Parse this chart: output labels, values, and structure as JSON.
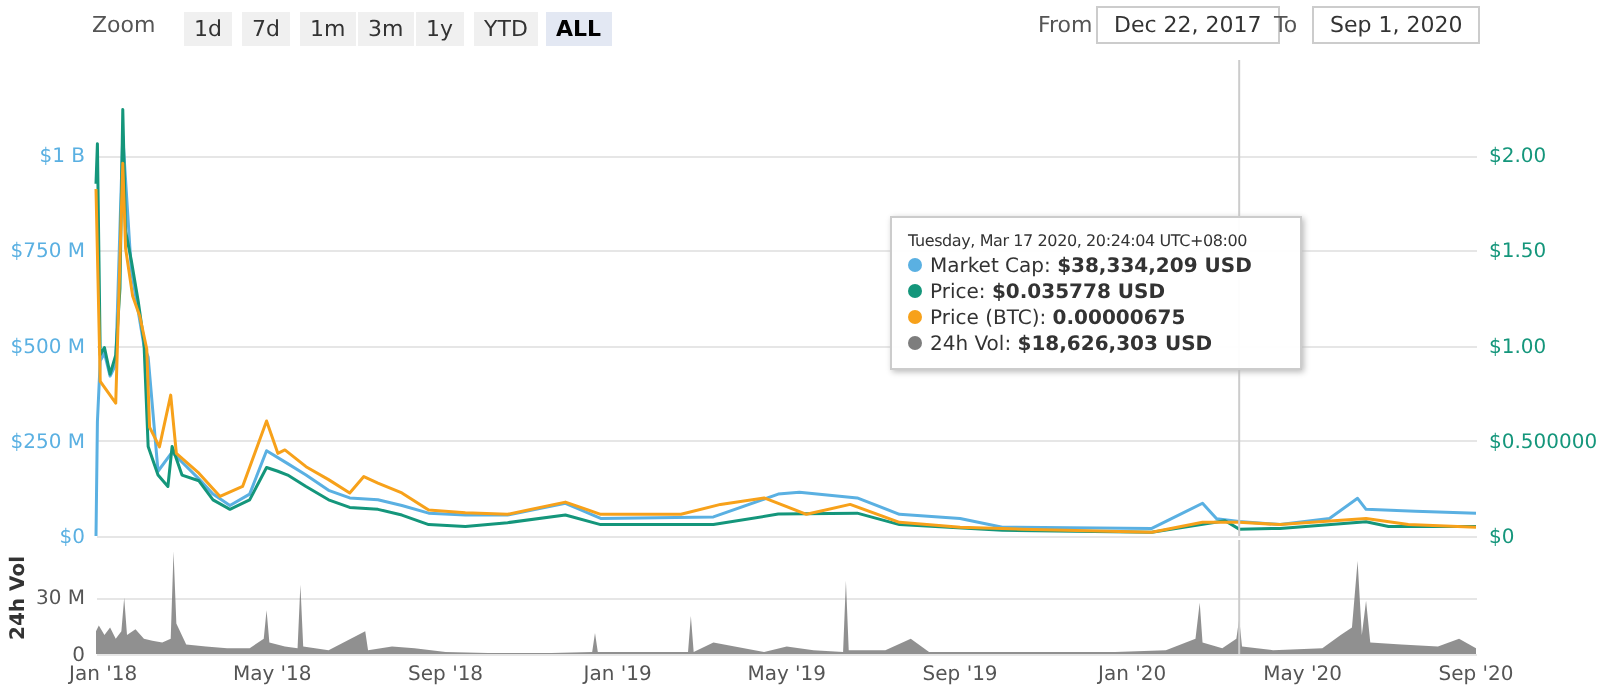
{
  "chart_data": [
    {
      "type": "line",
      "xlim": [
        "2017-12-27",
        "2020-09-01"
      ],
      "ylim": [
        0,
        1250000000.0
      ],
      "yticks": [
        {
          "value": 0,
          "label": "$0"
        },
        {
          "value": 250000000.0,
          "label": "$250 M"
        },
        {
          "value": 500000000.0,
          "label": "$500 M"
        },
        {
          "value": 750000000.0,
          "label": "$750 M"
        },
        {
          "value": 1000000000.0,
          "label": "$1 B"
        }
      ],
      "y2lim": [
        0,
        2.5
      ],
      "y2ticks": [
        {
          "value": 0,
          "label": "$0"
        },
        {
          "value": 0.5,
          "label": "$0.500000"
        },
        {
          "value": 1,
          "label": "$1.00"
        },
        {
          "value": 1.5,
          "label": "$1.50"
        },
        {
          "value": 2,
          "label": "$2.00"
        }
      ],
      "grid": "y",
      "tick_labels": "y",
      "line_style": "solid",
      "marker": "none",
      "series": [
        {
          "color": "#5ab0e2",
          "axis": "y",
          "x": [
            "2017-12-27",
            "2017-12-28",
            "2017-12-30",
            "2018-01-02",
            "2018-01-06",
            "2018-01-10",
            "2018-01-15",
            "2018-01-21",
            "2018-01-30",
            "2018-02-02",
            "2018-02-09",
            "2018-02-19",
            "2018-03-10",
            "2018-03-20",
            "2018-04-01",
            "2018-04-15",
            "2018-04-27",
            "2018-05-12",
            "2018-05-25",
            "2018-06-10",
            "2018-06-25",
            "2018-07-15",
            "2018-08-01",
            "2018-08-20",
            "2018-09-15",
            "2018-10-15",
            "2018-11-25",
            "2018-12-20",
            "2019-03-10",
            "2019-04-25",
            "2019-05-10",
            "2019-06-20",
            "2019-07-20",
            "2019-09-01",
            "2019-10-01",
            "2020-01-15",
            "2020-02-20",
            "2020-03-01",
            "2020-03-17",
            "2020-04-15",
            "2020-05-20",
            "2020-06-09",
            "2020-06-15",
            "2020-07-20",
            "2020-09-01"
          ],
          "values": [
            0,
            300000000.0,
            460000000.0,
            480000000.0,
            420000000.0,
            450000000.0,
            1050000000.0,
            700000000.0,
            500000000.0,
            470000000.0,
            170000000.0,
            220000000.0,
            150000000.0,
            110000000.0,
            80000000.0,
            110000000.0,
            224000000.0,
            190000000.0,
            160000000.0,
            120000000.0,
            100000000.0,
            95000000.0,
            80000000.0,
            60000000.0,
            55000000.0,
            55000000.0,
            86000000.0,
            46000000.0,
            50000000.0,
            110000000.0,
            115000000.0,
            100000000.0,
            57000000.0,
            46000000.0,
            23000000.0,
            20000000.0,
            86000000.0,
            45000000.0,
            38300000.0,
            30000000.0,
            46000000.0,
            99000000.0,
            70000000.0,
            65000000.0,
            60000000.0
          ]
        },
        {
          "color": "#14967b",
          "axis": "y2",
          "x": [
            "2017-12-27",
            "2017-12-28",
            "2017-12-30",
            "2018-01-02",
            "2018-01-06",
            "2018-01-10",
            "2018-01-13",
            "2018-01-15",
            "2018-01-17",
            "2018-01-21",
            "2018-01-26",
            "2018-01-30",
            "2018-02-02",
            "2018-02-09",
            "2018-02-16",
            "2018-02-19",
            "2018-02-26",
            "2018-03-10",
            "2018-03-20",
            "2018-04-01",
            "2018-04-15",
            "2018-04-27",
            "2018-05-05",
            "2018-05-12",
            "2018-05-25",
            "2018-06-10",
            "2018-06-25",
            "2018-07-15",
            "2018-08-01",
            "2018-08-20",
            "2018-09-15",
            "2018-10-15",
            "2018-11-25",
            "2018-12-20",
            "2019-03-10",
            "2019-04-25",
            "2019-06-20",
            "2019-07-20",
            "2019-10-01",
            "2020-01-15",
            "2020-03-07",
            "2020-03-17",
            "2020-04-15",
            "2020-06-15",
            "2020-07-01",
            "2020-09-01"
          ],
          "values": [
            1.85,
            2.06,
            0.95,
            0.99,
            0.85,
            0.95,
            1.3,
            2.24,
            1.6,
            1.45,
            1.23,
            1.02,
            0.47,
            0.32,
            0.26,
            0.47,
            0.32,
            0.29,
            0.19,
            0.14,
            0.19,
            0.36,
            0.34,
            0.32,
            0.26,
            0.19,
            0.15,
            0.14,
            0.11,
            0.06,
            0.05,
            0.07,
            0.11,
            0.06,
            0.06,
            0.115,
            0.12,
            0.06,
            0.03,
            0.02,
            0.08,
            0.036,
            0.04,
            0.075,
            0.05,
            0.05
          ]
        },
        {
          "color": "#f7a11a",
          "axis": "y",
          "x": [
            "2017-12-27",
            "2017-12-30",
            "2018-01-10",
            "2018-01-15",
            "2018-01-17",
            "2018-01-22",
            "2018-01-27",
            "2018-02-01",
            "2018-02-03",
            "2018-02-10",
            "2018-02-18",
            "2018-02-22",
            "2018-03-10",
            "2018-03-25",
            "2018-04-10",
            "2018-04-27",
            "2018-05-05",
            "2018-05-10",
            "2018-05-25",
            "2018-06-10",
            "2018-06-25",
            "2018-07-05",
            "2018-07-15",
            "2018-08-01",
            "2018-08-20",
            "2018-09-15",
            "2018-10-15",
            "2018-11-25",
            "2018-12-20",
            "2019-02-15",
            "2019-03-15",
            "2019-04-15",
            "2019-05-15",
            "2019-06-15",
            "2019-07-20",
            "2019-09-01",
            "2019-10-15",
            "2020-01-15",
            "2020-02-20",
            "2020-03-17",
            "2020-04-15",
            "2020-06-15",
            "2020-07-15",
            "2020-09-01"
          ],
          "values": [
            911000000.0,
            406000000.0,
            349000000.0,
            979000000.0,
            755000000.0,
            630000000.0,
            578000000.0,
            491000000.0,
            286000000.0,
            234000000.0,
            370000000.0,
            217000000.0,
            165000000.0,
            104000000.0,
            130000000.0,
            302000000.0,
            217000000.0,
            226000000.0,
            182000000.0,
            148000000.0,
            113000000.0,
            156000000.0,
            139000000.0,
            113000000.0,
            68000000.0,
            61000000.0,
            57000000.0,
            89000000.0,
            57000000.0,
            57000000.0,
            83000000.0,
            100000000.0,
            57000000.0,
            83000000.0,
            36000000.0,
            23000000.0,
            18000000.0,
            10000000.0,
            36000000.0,
            36000000.0,
            30000000.0,
            46000000.0,
            30000000.0,
            23000000.0
          ]
        }
      ],
      "ref_lines": [
        {
          "axis": "x",
          "value": "2020-03-17",
          "color": "#cccccc"
        }
      ],
      "annotations": [
        "Zoom",
        "1d",
        "7d",
        "1m",
        "3m",
        "1y",
        "YTD",
        "ALL",
        "From",
        "Dec 22, 2017",
        "To",
        "Sep 1, 2020",
        "Tuesday, Mar 17 2020, 20:24:04 UTC+08:00",
        "Market Cap: $38,334,209 USD",
        "Price: $0.035778 USD",
        "Price (BTC): 0.00000675",
        "24h Vol: $18,626,303 USD"
      ]
    },
    {
      "type": "area",
      "ylabel": "24h Vol",
      "xlim": [
        "2017-12-27",
        "2020-09-01"
      ],
      "xticks": [
        {
          "value": "2018-01-01",
          "label": "Jan '18"
        },
        {
          "value": "2018-05-01",
          "label": "May '18"
        },
        {
          "value": "2018-09-01",
          "label": "Sep '18"
        },
        {
          "value": "2019-01-01",
          "label": "Jan '19"
        },
        {
          "value": "2019-05-01",
          "label": "May '19"
        },
        {
          "value": "2019-09-01",
          "label": "Sep '19"
        },
        {
          "value": "2020-01-01",
          "label": "Jan '20"
        },
        {
          "value": "2020-05-01",
          "label": "May '20"
        },
        {
          "value": "2020-09-01",
          "label": "Sep '20"
        }
      ],
      "ylim": [
        0,
        60000000.0
      ],
      "yticks": [
        0,
        {
          "value": 30000000.0,
          "label": "30 M"
        }
      ],
      "grid": "y",
      "x": [
        "2017-12-27",
        "2017-12-29",
        "2018-01-02",
        "2018-01-06",
        "2018-01-10",
        "2018-01-14",
        "2018-01-16",
        "2018-01-18",
        "2018-01-24",
        "2018-01-30",
        "2018-02-05",
        "2018-02-12",
        "2018-02-18",
        "2018-02-20",
        "2018-02-22",
        "2018-03-01",
        "2018-03-15",
        "2018-03-30",
        "2018-04-15",
        "2018-04-25",
        "2018-04-27",
        "2018-04-29",
        "2018-05-10",
        "2018-05-19",
        "2018-05-21",
        "2018-05-23",
        "2018-06-10",
        "2018-07-06",
        "2018-07-08",
        "2018-07-25",
        "2018-08-10",
        "2018-09-01",
        "2018-10-01",
        "2018-11-15",
        "2018-12-14",
        "2018-12-16",
        "2018-12-18",
        "2019-02-01",
        "2019-02-20",
        "2019-02-22",
        "2019-02-24",
        "2019-03-10",
        "2019-04-15",
        "2019-05-01",
        "2019-05-20",
        "2019-06-10",
        "2019-06-12",
        "2019-06-14",
        "2019-07-10",
        "2019-07-28",
        "2019-08-10",
        "2019-10-01",
        "2019-11-20",
        "2019-12-20",
        "2020-01-25",
        "2020-02-15",
        "2020-02-18",
        "2020-02-20",
        "2020-03-05",
        "2020-03-15",
        "2020-03-17",
        "2020-03-19",
        "2020-04-10",
        "2020-05-15",
        "2020-05-28",
        "2020-06-05",
        "2020-06-09",
        "2020-06-12",
        "2020-06-15",
        "2020-06-18",
        "2020-07-10",
        "2020-08-05",
        "2020-08-20",
        "2020-09-01"
      ],
      "series": [
        {
          "color": "#7d7d7d",
          "values": [
            12000000.0,
            15000000.0,
            10000000.0,
            14000000.0,
            8000000.0,
            12000000.0,
            29600000.0,
            10000000.0,
            13000000.0,
            8000000.0,
            7000000.0,
            6000000.0,
            8000000.0,
            54000000.0,
            16000000.0,
            5000000.0,
            4000000.0,
            3000000.0,
            3000000.0,
            8000000.0,
            23000000.0,
            6000000.0,
            4000000.0,
            3000000.0,
            36500000.0,
            4000000.0,
            2000000.0,
            12000000.0,
            2000000.0,
            4000000.0,
            3000000.0,
            1000000.0,
            500000.0,
            500000.0,
            1000000.0,
            11000000.0,
            1000000.0,
            1000000.0,
            1000000.0,
            20000000.0,
            1000000.0,
            6000000.0,
            1000000.0,
            4000000.0,
            2000000.0,
            1000000.0,
            38600000.0,
            2000000.0,
            2000000.0,
            8000000.0,
            1000000.0,
            1000000.0,
            1000000.0,
            1000000.0,
            2000000.0,
            8000000.0,
            27000000.0,
            6000000.0,
            3000000.0,
            8000000.0,
            18600000.0,
            4000000.0,
            2000000.0,
            3000000.0,
            10000000.0,
            14000000.0,
            49000000.0,
            10000000.0,
            28000000.0,
            6000000.0,
            5000000.0,
            4000000.0,
            8000000.0,
            3000000.0
          ]
        }
      ],
      "ref_lines": [
        {
          "axis": "x",
          "value": "2020-03-17",
          "color": "#cccccc"
        }
      ]
    }
  ]
}
